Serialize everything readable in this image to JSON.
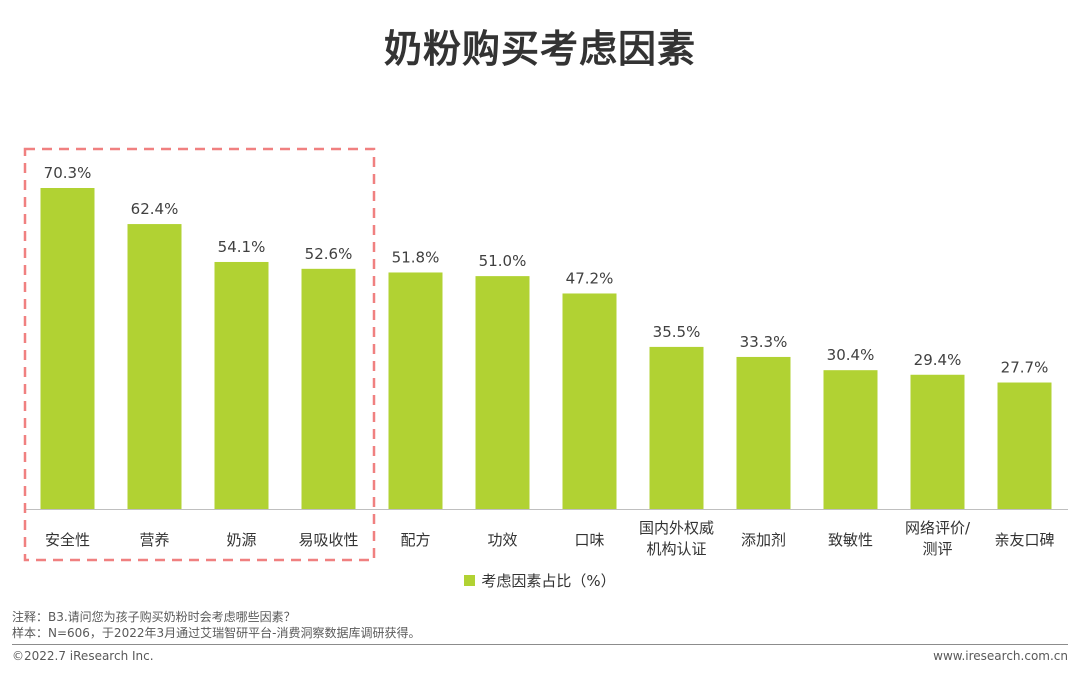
{
  "title": "奶粉购买考虑因素",
  "chart_data": {
    "type": "bar",
    "categories": [
      [
        "安全性"
      ],
      [
        "营养"
      ],
      [
        "奶源"
      ],
      [
        "易吸收性"
      ],
      [
        "配方"
      ],
      [
        "功效"
      ],
      [
        "口味"
      ],
      [
        "国内外权威",
        "机构认证"
      ],
      [
        "添加剂"
      ],
      [
        "致敏性"
      ],
      [
        "网络评价/",
        "测评"
      ],
      [
        "亲友口碑"
      ]
    ],
    "series": [
      {
        "name": "考虑因素占比（%）",
        "values": [
          70.3,
          62.4,
          54.1,
          52.6,
          51.8,
          51.0,
          47.2,
          35.5,
          33.3,
          30.4,
          29.4,
          27.7
        ]
      }
    ],
    "value_labels": [
      "70.3%",
      "62.4%",
      "54.1%",
      "52.6%",
      "51.8%",
      "51.0%",
      "47.2%",
      "35.5%",
      "33.3%",
      "30.4%",
      "29.4%",
      "27.7%"
    ],
    "highlight_group": [
      0,
      1,
      2,
      3
    ],
    "bar_color": "#B1D233",
    "highlight_border_color": "#F08080",
    "ylim": [
      0,
      70.3
    ],
    "grid": false,
    "legend_position": "bottom"
  },
  "notes": {
    "line1": "注释：B3.请问您为孩子购买奶粉时会考虑哪些因素？",
    "line2": "样本：N=606，于2022年3月通过艾瑞智研平台-消费洞察数据库调研获得。"
  },
  "footer": {
    "copyright": "©2022.7 iResearch Inc.",
    "website": "www.iresearch.com.cn"
  }
}
